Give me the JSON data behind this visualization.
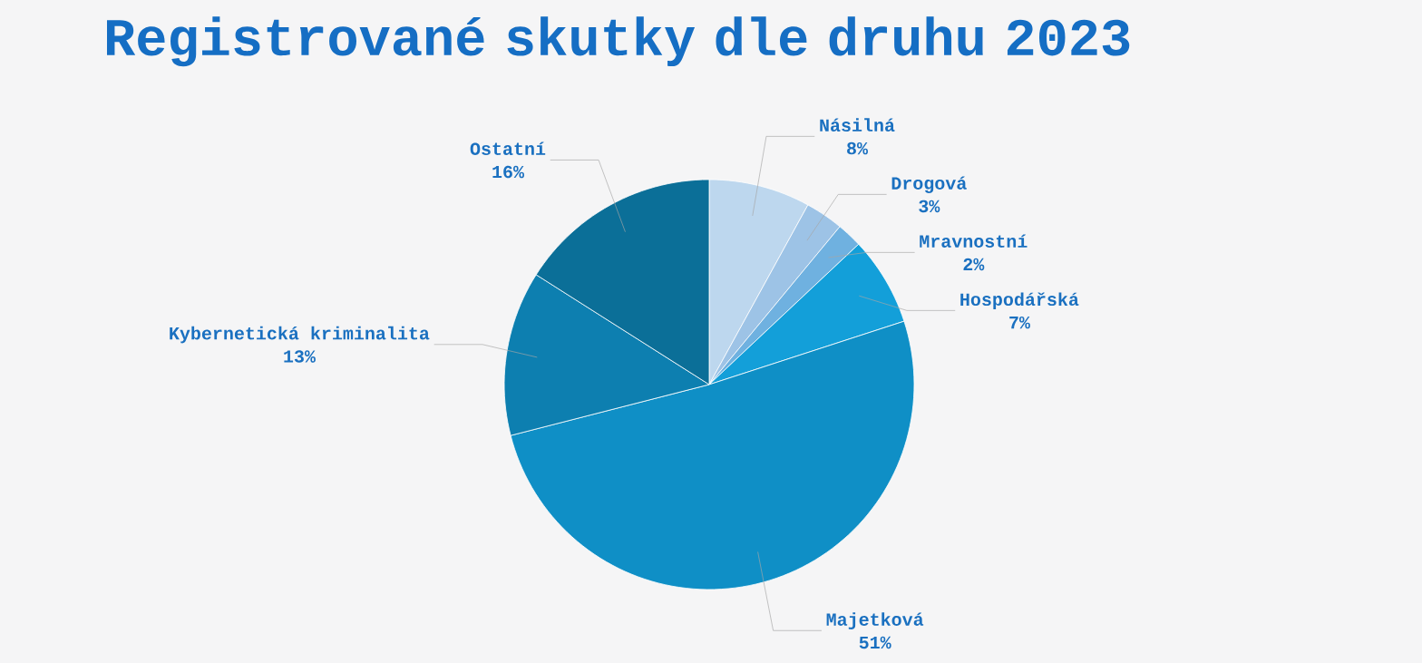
{
  "chart_data": {
    "type": "pie",
    "title": "Registrované skutky dle druhu 2023",
    "categories": [
      "Násilná",
      "Drogová",
      "Mravnostní",
      "Hospodářská",
      "Majetková",
      "Kybernetická kriminalita",
      "Ostatní"
    ],
    "values": [
      8,
      3,
      2,
      7,
      51,
      13,
      16
    ],
    "value_labels": [
      "8%",
      "3%",
      "2%",
      "7%",
      "51%",
      "13%",
      "16%"
    ],
    "colors": [
      "#bdd7ee",
      "#9dc3e6",
      "#6fb1e0",
      "#139fd9",
      "#0f8fc6",
      "#0d7fb0",
      "#0b6f98"
    ]
  }
}
